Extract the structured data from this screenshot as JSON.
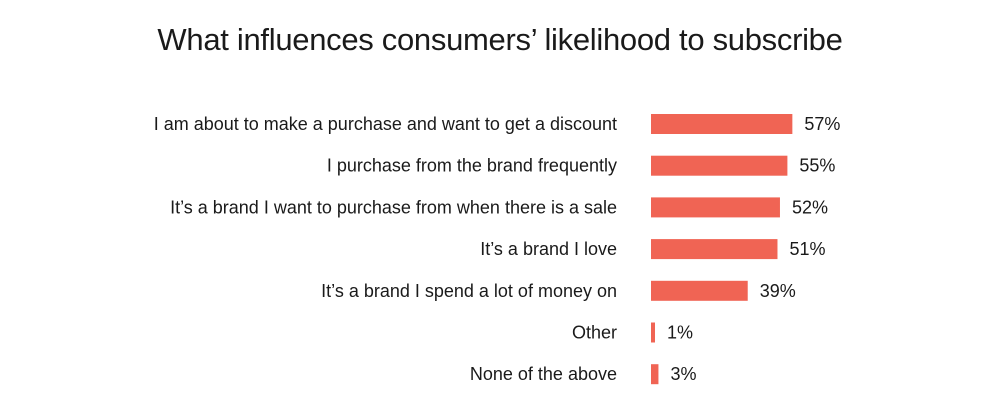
{
  "chart_data": {
    "type": "bar",
    "orientation": "horizontal",
    "title": "What influences consumers’ likelihood to subscribe",
    "categories": [
      "I am about to make a purchase and want to get a discount",
      "I purchase from the brand frequently",
      "It’s a brand I want to purchase from when there is a sale",
      "It’s a brand I love",
      "It’s a brand I spend a lot of money on",
      "Other",
      "None of the above"
    ],
    "values": [
      57,
      55,
      52,
      51,
      39,
      1,
      3
    ],
    "value_labels": [
      "57%",
      "55%",
      "52%",
      "51%",
      "39%",
      "1%",
      "3%"
    ],
    "value_unit": "%",
    "xlim": [
      0,
      100
    ],
    "grid": false,
    "legend": "none",
    "colors": {
      "bar": "#f06454"
    }
  }
}
